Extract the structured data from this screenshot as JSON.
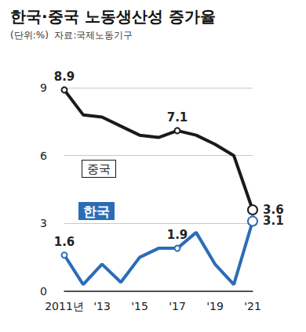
{
  "chart_data": {
    "type": "line",
    "title": "한국·중국 노동생산성 증가율",
    "subtitle": "(단위:%)  자료:국제노동기구",
    "categories": [
      "2011년",
      null,
      "'13",
      null,
      "'15",
      null,
      "'17",
      null,
      "'19",
      null,
      "'21"
    ],
    "series": [
      {
        "name": "중국",
        "color": "#1a1a1a",
        "values": [
          8.9,
          7.8,
          7.7,
          7.3,
          6.9,
          6.8,
          7.1,
          6.9,
          6.5,
          6.0,
          3.6
        ],
        "value_labels": [
          "8.9",
          null,
          null,
          null,
          null,
          null,
          "7.1",
          null,
          null,
          null,
          "3.6"
        ]
      },
      {
        "name": "한국",
        "color": "#2b6cb6",
        "values": [
          1.6,
          0.3,
          1.2,
          0.4,
          1.5,
          1.9,
          1.9,
          2.6,
          1.2,
          0.3,
          3.1
        ],
        "value_labels": [
          "1.6",
          null,
          null,
          null,
          null,
          null,
          "1.9",
          null,
          null,
          null,
          "3.1"
        ]
      }
    ],
    "ylim": [
      0,
      9
    ],
    "yticks": [
      0,
      3,
      6,
      9
    ],
    "grid": true,
    "marker": "circle"
  }
}
